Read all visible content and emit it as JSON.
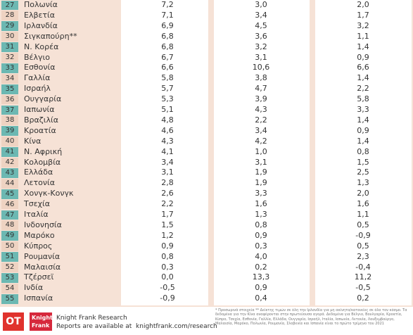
{
  "table": {
    "rows": [
      [
        "27",
        "Πολωνία",
        "7,2",
        "3,0",
        "2,0"
      ],
      [
        "28",
        "Ελβετία",
        "7,1",
        "3,4",
        "1,7"
      ],
      [
        "29",
        "Ιρλανδία",
        "6,9",
        "4,5",
        "3,2"
      ],
      [
        "30",
        "Σιγκαπούρη**",
        "6,8",
        "3,6",
        "1,1"
      ],
      [
        "31",
        "Ν. Κορέα",
        "6,8",
        "3,2",
        "1,4"
      ],
      [
        "32",
        "Βέλγιο",
        "6,7",
        "3,1",
        "0,9"
      ],
      [
        "33",
        "Εσθονία",
        "6,6",
        "10,6",
        "6,6"
      ],
      [
        "34",
        "Γαλλία",
        "5,8",
        "3,8",
        "1,4"
      ],
      [
        "35",
        "Ισραήλ",
        "5,7",
        "4,7",
        "2,2"
      ],
      [
        "36",
        "Ουγγαρία",
        "5,3",
        "3,9",
        "5,8"
      ],
      [
        "37",
        "Ιαπωνία",
        "5,1",
        "4,3",
        "3,3"
      ],
      [
        "38",
        "Βραζιλία",
        "4,8",
        "2,2",
        "1,4"
      ],
      [
        "39",
        "Κροατία",
        "4,6",
        "3,4",
        "0,9"
      ],
      [
        "40",
        "Κίνα",
        "4,3",
        "4,2",
        "1,4"
      ],
      [
        "41",
        "Ν. Αφρική",
        "4,1",
        "1,0",
        "0,8"
      ],
      [
        "42",
        "Κολομβία",
        "3,4",
        "3,1",
        "1,5"
      ],
      [
        "43",
        "Ελλάδα",
        "3,1",
        "1,9",
        "2,5"
      ],
      [
        "44",
        "Λετονία",
        "2,8",
        "1,9",
        "1,3"
      ],
      [
        "45",
        "Χονγκ-Κονγκ",
        "2,6",
        "3,3",
        "2,0"
      ],
      [
        "46",
        "Τσεχία",
        "2,2",
        "1,6",
        "1,6"
      ],
      [
        "47",
        "Ιταλία",
        "1,7",
        "1,3",
        "1,1"
      ],
      [
        "48",
        "Ινδονησία",
        "1,5",
        "0,8",
        "0,5"
      ],
      [
        "49",
        "Μαρόκο",
        "1,2",
        "0,9",
        "-0,9"
      ],
      [
        "50",
        "Κύπρος",
        "0,9",
        "0,3",
        "0,5"
      ],
      [
        "51",
        "Ρουμανία",
        "0,8",
        "4,0",
        "2,3"
      ],
      [
        "52",
        "Μαλαισία",
        "0,3",
        "0,2",
        "-0,4"
      ],
      [
        "53",
        "Τζέρσεϊ",
        "0,0",
        "13,3",
        "11,2"
      ],
      [
        "54",
        "Ινδία",
        "-0,5",
        "0,9",
        "-0,5"
      ],
      [
        "55",
        "Ισπανία",
        "-0,9",
        "0,4",
        "0,2"
      ]
    ]
  },
  "footer": {
    "logo": "OT",
    "kf_logo_1": "Knight",
    "kf_logo_2": "Frank",
    "brand": "Knight Frank Research",
    "reports": "Reports are available at  knightfrank.com/research",
    "notes": "* Προσωρινά στοιχεία ** Δείκτης τιμών σε όλη την Ιρλανδία για μη ακίνητα/κατοικίες σε όλο τον κόσμο. Τα δεδομένα για την Κίνα αναφέρονται στην πρωτεύουσα αγορά. Δεδομένα για Βέλγιο, Βουλγαρία, Κροατία, Κύπρο, Τσεχία, Εσθονία, Γαλλία, Ελλάδα, Ουγγαρία, Ισραήλ, Ιταλία, Ιαπωνία, Λετονία, Λουξεμβούργο, Μαλαισία, Μαρόκο, Πολωνία, Ρουμανία, Σλοβενία και Ισπανία είναι το πρώτο τρίμηνο του 2021"
  }
}
